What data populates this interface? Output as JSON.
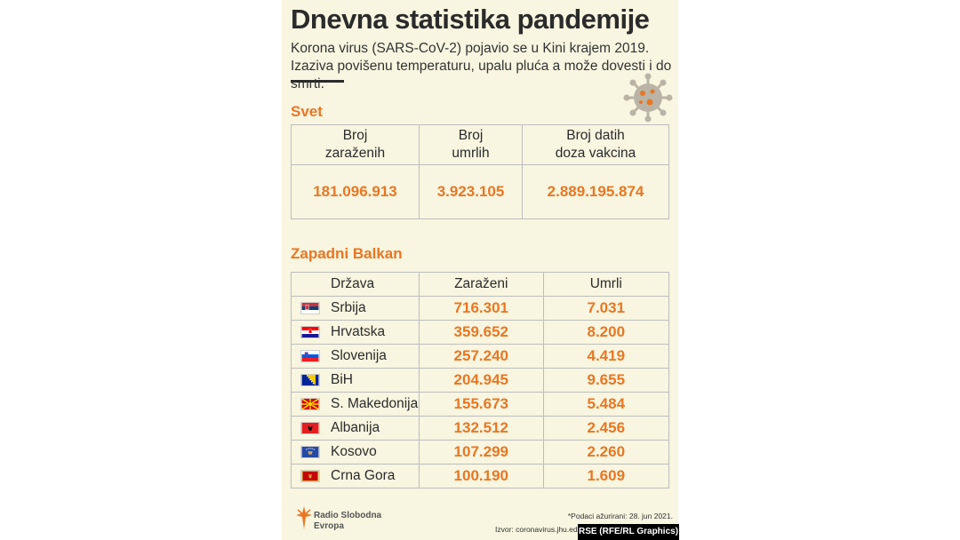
{
  "title": "Dnevna statistika pandemije",
  "subtitle": "Korona virus (SARS-CoV-2) pojavio se u Kini krajem 2019. Izaziva povišenu temperaturu, upalu pluća a može dovesti i do smrti.",
  "virus_icon": "virus-icon",
  "accent_color": "#e87722",
  "world": {
    "heading": "Svet",
    "columns": [
      "Broj\nzaraženih",
      "Broj\numrlih",
      "Broj datih\ndoza vakcina"
    ],
    "values": [
      "181.096.913",
      "3.923.105",
      "2.889.195.874"
    ]
  },
  "balkan": {
    "heading": "Zapadni Balkan",
    "columns": [
      "Država",
      "Zaraženi",
      "Umrli"
    ],
    "rows": [
      {
        "country": "Srbija",
        "flag": "serbia-flag-icon",
        "infected": "716.301",
        "deaths": "7.031"
      },
      {
        "country": "Hrvatska",
        "flag": "croatia-flag-icon",
        "infected": "359.652",
        "deaths": "8.200"
      },
      {
        "country": "Slovenija",
        "flag": "slovenia-flag-icon",
        "infected": "257.240",
        "deaths": "4.419"
      },
      {
        "country": "BiH",
        "flag": "bosnia-flag-icon",
        "infected": "204.945",
        "deaths": "9.655"
      },
      {
        "country": "S. Makedonija",
        "flag": "north-macedonia-flag-icon",
        "infected": "155.673",
        "deaths": "5.484"
      },
      {
        "country": "Albanija",
        "flag": "albania-flag-icon",
        "infected": "132.512",
        "deaths": "2.456"
      },
      {
        "country": "Kosovo",
        "flag": "kosovo-flag-icon",
        "infected": "107.299",
        "deaths": "2.260"
      },
      {
        "country": "Crna Gora",
        "flag": "montenegro-flag-icon",
        "infected": "100.190",
        "deaths": "1.609"
      }
    ]
  },
  "footer": {
    "logo_line1": "Radio Slobodna",
    "logo_line2": "Evropa",
    "updated": "*Podaci ažurirani: 28. jun 2021.",
    "source": "Izvor: coronavirus.jhu.ed",
    "credit": "RSE (RFE/RL Graphics)"
  }
}
